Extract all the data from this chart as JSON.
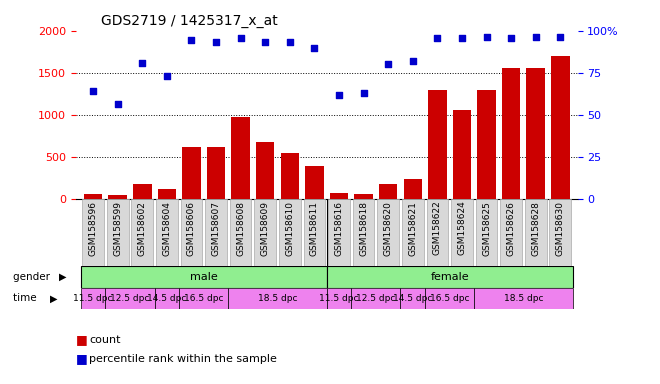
{
  "title": "GDS2719 / 1425317_x_at",
  "samples": [
    "GSM158596",
    "GSM158599",
    "GSM158602",
    "GSM158604",
    "GSM158606",
    "GSM158607",
    "GSM158608",
    "GSM158609",
    "GSM158610",
    "GSM158611",
    "GSM158616",
    "GSM158618",
    "GSM158620",
    "GSM158621",
    "GSM158622",
    "GSM158624",
    "GSM158625",
    "GSM158626",
    "GSM158628",
    "GSM158630"
  ],
  "counts": [
    60,
    40,
    170,
    110,
    610,
    620,
    970,
    670,
    540,
    390,
    70,
    60,
    170,
    240,
    1290,
    1060,
    1290,
    1560,
    1560,
    1700
  ],
  "percentiles": [
    1280,
    1130,
    1620,
    1460,
    1890,
    1870,
    1910,
    1870,
    1860,
    1790,
    1230,
    1260,
    1600,
    1640,
    1910,
    1910,
    1930,
    1910,
    1930,
    1930
  ],
  "bar_color": "#cc0000",
  "dot_color": "#0000cc",
  "left_ylim": [
    0,
    2000
  ],
  "right_ylim": [
    0,
    100
  ],
  "left_yticks": [
    0,
    500,
    1000,
    1500,
    2000
  ],
  "right_yticks": [
    0,
    25,
    50,
    75,
    100
  ],
  "right_yticklabels": [
    "0",
    "25",
    "50",
    "75",
    "100%"
  ],
  "bg_color": "#ffffff",
  "xtick_bg": "#d8d8d8",
  "gender_color": "#90ee90",
  "time_color": "#ee82ee",
  "legend_count_label": "count",
  "legend_pct_label": "percentile rank within the sample",
  "time_male_ranges": [
    [
      0,
      0
    ],
    [
      1,
      2
    ],
    [
      3,
      3
    ],
    [
      4,
      5
    ],
    [
      6,
      9
    ]
  ],
  "time_female_ranges": [
    [
      10,
      10
    ],
    [
      11,
      12
    ],
    [
      13,
      13
    ],
    [
      14,
      15
    ],
    [
      16,
      19
    ]
  ],
  "time_labels": [
    "11.5 dpc",
    "12.5 dpc",
    "14.5 dpc",
    "16.5 dpc",
    "18.5 dpc"
  ]
}
